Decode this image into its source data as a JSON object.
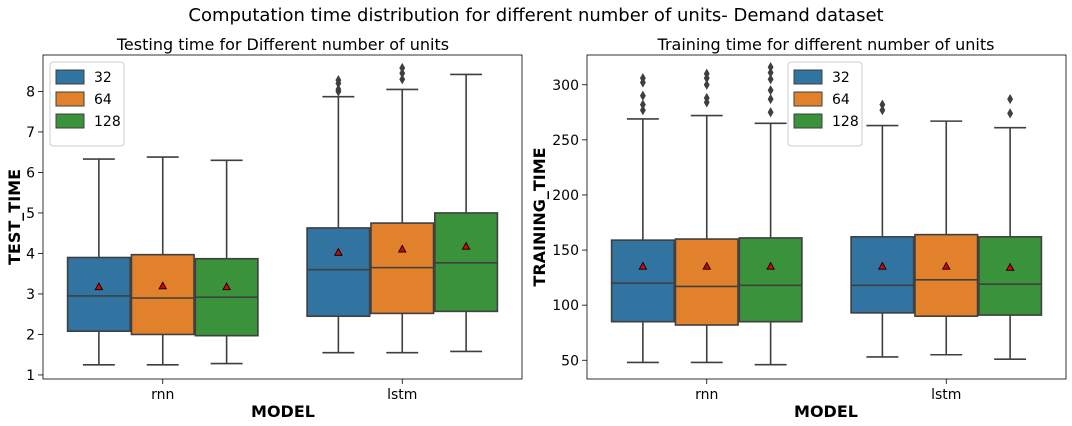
{
  "suptitle": "Computation time distribution for different number of units- Demand dataset",
  "colors": {
    "32": "#3274a1",
    "64": "#e1812c",
    "128": "#3a923a"
  },
  "chart_data": [
    {
      "type": "box",
      "title": "Testing time for Different number of units",
      "xlabel": "MODEL",
      "ylabel": "TEST_TIME",
      "categories": [
        "rnn",
        "lstm"
      ],
      "ylim": [
        0.9,
        8.9
      ],
      "yticks": [
        1,
        2,
        3,
        4,
        5,
        6,
        7,
        8
      ],
      "legend": {
        "position": "top-left",
        "entries": [
          "32",
          "64",
          "128"
        ]
      },
      "series": [
        {
          "name": "32",
          "boxes": [
            {
              "whislo": 1.25,
              "q1": 2.08,
              "med": 2.95,
              "q3": 3.9,
              "whishi": 6.33,
              "mean": 3.17,
              "fliers": []
            },
            {
              "whislo": 1.55,
              "q1": 2.45,
              "med": 3.6,
              "q3": 4.63,
              "whishi": 7.87,
              "mean": 4.02,
              "fliers": [
                8.0,
                8.05,
                8.2,
                8.28
              ]
            }
          ]
        },
        {
          "name": "64",
          "boxes": [
            {
              "whislo": 1.25,
              "q1": 2.0,
              "med": 2.9,
              "q3": 3.97,
              "whishi": 6.38,
              "mean": 3.19,
              "fliers": []
            },
            {
              "whislo": 1.55,
              "q1": 2.52,
              "med": 3.65,
              "q3": 4.75,
              "whishi": 8.05,
              "mean": 4.1,
              "fliers": [
                8.3,
                8.45,
                8.58
              ]
            }
          ]
        },
        {
          "name": "128",
          "boxes": [
            {
              "whislo": 1.28,
              "q1": 1.97,
              "med": 2.92,
              "q3": 3.87,
              "whishi": 6.3,
              "mean": 3.17,
              "fliers": []
            },
            {
              "whislo": 1.58,
              "q1": 2.57,
              "med": 3.77,
              "q3": 5.0,
              "whishi": 8.42,
              "mean": 4.17,
              "fliers": []
            }
          ]
        }
      ]
    },
    {
      "type": "box",
      "title": "Training time for different number of units",
      "xlabel": "MODEL",
      "ylabel": "TRAINING_TIME",
      "categories": [
        "rnn",
        "lstm"
      ],
      "ylim": [
        33,
        327
      ],
      "yticks": [
        50,
        100,
        150,
        200,
        250,
        300
      ],
      "legend": {
        "position": "top-center",
        "entries": [
          "32",
          "64",
          "128"
        ]
      },
      "series": [
        {
          "name": "32",
          "boxes": [
            {
              "whislo": 48,
              "q1": 85,
              "med": 120,
              "q3": 159,
              "whishi": 269,
              "mean": 135,
              "fliers": [
                277,
                282,
                290,
                302,
                306
              ]
            },
            {
              "whislo": 53,
              "q1": 93,
              "med": 118,
              "q3": 162,
              "whishi": 263,
              "mean": 135,
              "fliers": [
                277,
                282
              ]
            }
          ]
        },
        {
          "name": "64",
          "boxes": [
            {
              "whislo": 48,
              "q1": 82,
              "med": 117,
              "q3": 160,
              "whishi": 272,
              "mean": 135,
              "fliers": [
                284,
                288,
                300,
                306,
                310
              ]
            },
            {
              "whislo": 55,
              "q1": 90,
              "med": 123,
              "q3": 164,
              "whishi": 267,
              "mean": 135,
              "fliers": []
            }
          ]
        },
        {
          "name": "128",
          "boxes": [
            {
              "whislo": 46,
              "q1": 85,
              "med": 118,
              "q3": 161,
              "whishi": 265,
              "mean": 135,
              "fliers": [
                275,
                287,
                295,
                305,
                311,
                316
              ]
            },
            {
              "whislo": 51,
              "q1": 91,
              "med": 119,
              "q3": 162,
              "whishi": 261,
              "mean": 134,
              "fliers": [
                274,
                287
              ]
            }
          ]
        }
      ]
    }
  ]
}
